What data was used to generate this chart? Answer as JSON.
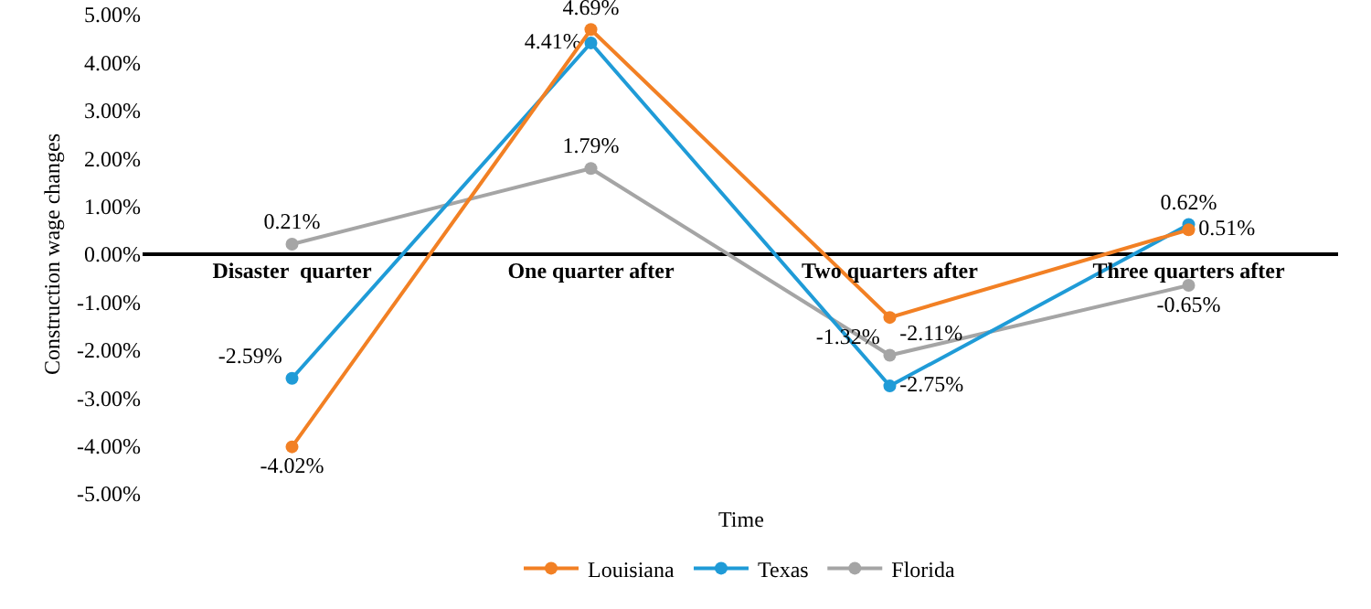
{
  "chart_data": {
    "type": "line",
    "xlabel": "Time",
    "ylabel": "Construction wage changes",
    "categories": [
      "Disaster  quarter",
      "One quarter after",
      "Two quarters after",
      "Three quarters after"
    ],
    "series": [
      {
        "name": "Louisiana",
        "color": "#f28024",
        "values": [
          -4.02,
          4.69,
          -1.32,
          0.51
        ],
        "value_labels": [
          "-4.02%",
          "4.69%",
          "-1.32%",
          "0.51%"
        ]
      },
      {
        "name": "Texas",
        "color": "#1f9bd7",
        "values": [
          -2.59,
          4.41,
          -2.75,
          0.62
        ],
        "value_labels": [
          "-2.59%",
          "4.41%",
          "-2.75%",
          "0.62%"
        ]
      },
      {
        "name": "Florida",
        "color": "#a5a5a5",
        "values": [
          0.21,
          1.79,
          -2.11,
          -0.65
        ],
        "value_labels": [
          "0.21%",
          "1.79%",
          "-2.11%",
          "-0.65%"
        ]
      }
    ],
    "ylim": [
      -5,
      5
    ],
    "yticks": [
      {
        "value": -5,
        "label": "-5.00%"
      },
      {
        "value": -4,
        "label": "-4.00%"
      },
      {
        "value": -3,
        "label": "-3.00%"
      },
      {
        "value": -2,
        "label": "-2.00%"
      },
      {
        "value": -1,
        "label": "-1.00%"
      },
      {
        "value": 0,
        "label": "0.00%"
      },
      {
        "value": 1,
        "label": "1.00%"
      },
      {
        "value": 2,
        "label": "2.00%"
      },
      {
        "value": 3,
        "label": "3.00%"
      },
      {
        "value": 4,
        "label": "4.00%"
      },
      {
        "value": 5,
        "label": "5.00%"
      }
    ],
    "grid": false,
    "legend": "bottom",
    "marker": "circle",
    "line_style": "solid"
  }
}
